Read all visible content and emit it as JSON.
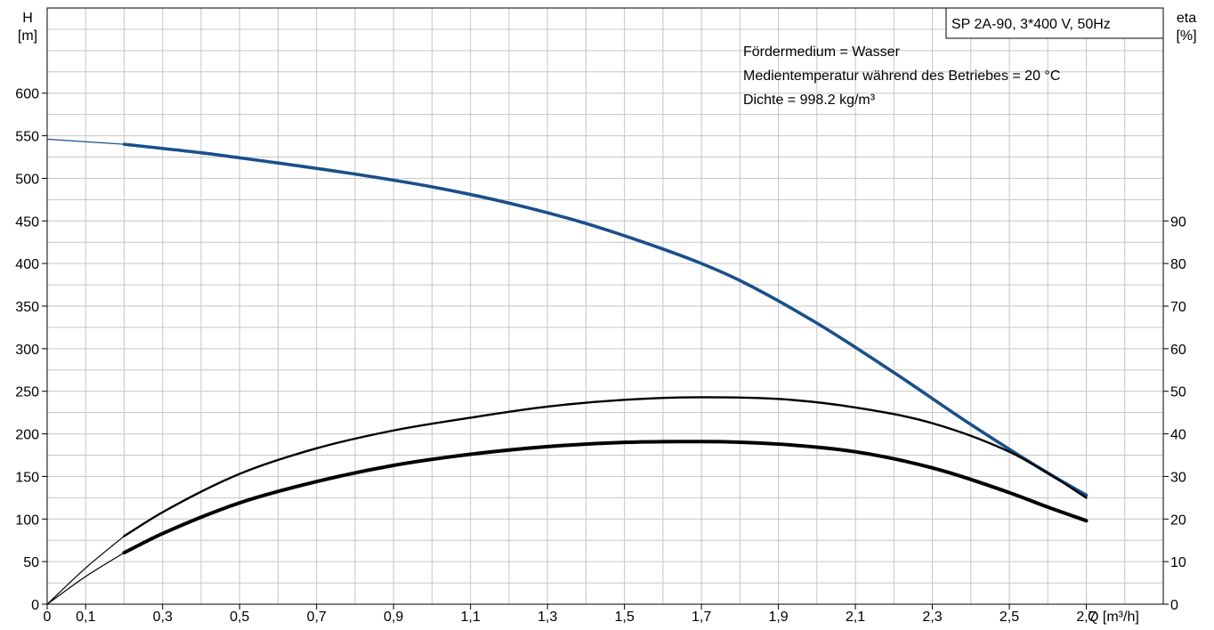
{
  "chart_data": {
    "type": "line",
    "title_box": "SP 2A-90, 3*400 V, 50Hz",
    "notes": [
      "Fördermedium = Wasser",
      "Medientemperatur während des Betriebes = 20 °C",
      "Dichte = 998.2 kg/m³"
    ],
    "x_axis": {
      "label": "Q [m³/h]",
      "range": [
        0,
        2.9
      ],
      "tick_labels": [
        "0",
        "0,1",
        "0,3",
        "0,5",
        "0,7",
        "0,9",
        "1,1",
        "1,3",
        "1,5",
        "1,7",
        "1,9",
        "2,1",
        "2,3",
        "2,5",
        "2,7"
      ],
      "tick_values": [
        0,
        0.1,
        0.3,
        0.5,
        0.7,
        0.9,
        1.1,
        1.3,
        1.5,
        1.7,
        1.9,
        2.1,
        2.3,
        2.5,
        2.7
      ]
    },
    "y_left": {
      "label_top": "H",
      "label_unit": "[m]",
      "range": [
        0,
        700
      ],
      "tick_labels": [
        "0",
        "50",
        "100",
        "150",
        "200",
        "250",
        "300",
        "350",
        "400",
        "450",
        "500",
        "550",
        "600"
      ],
      "tick_values": [
        0,
        50,
        100,
        150,
        200,
        250,
        300,
        350,
        400,
        450,
        500,
        550,
        600
      ]
    },
    "y_right": {
      "label_top": "eta",
      "label_unit": "[%]",
      "range": [
        0,
        140
      ],
      "tick_labels": [
        "0",
        "10",
        "20",
        "30",
        "40",
        "50",
        "60",
        "70",
        "80",
        "90"
      ],
      "tick_values": [
        0,
        10,
        20,
        30,
        40,
        50,
        60,
        70,
        80,
        90
      ]
    },
    "grid": true,
    "series": [
      {
        "axis": "left",
        "color": "#1a4f8a",
        "extended_range": [
          0,
          0.2
        ],
        "x": [
          0,
          0.2,
          0.4,
          0.6,
          0.8,
          1.0,
          1.2,
          1.4,
          1.6,
          1.7,
          1.8,
          2.0,
          2.2,
          2.4,
          2.6,
          2.7
        ],
        "y": [
          546,
          540,
          530,
          518,
          505,
          490,
          471,
          447,
          417,
          400,
          380,
          330,
          272,
          211,
          154,
          128
        ]
      },
      {
        "axis": "right",
        "color": "#000000",
        "extended_range": [
          0,
          0.2
        ],
        "x": [
          0,
          0.1,
          0.2,
          0.3,
          0.5,
          0.7,
          0.9,
          1.1,
          1.3,
          1.5,
          1.7,
          1.9,
          2.1,
          2.3,
          2.5,
          2.6,
          2.7
        ],
        "y": [
          0,
          8.5,
          16,
          21.6,
          30.6,
          36.6,
          40.8,
          43.8,
          46.4,
          48.0,
          48.6,
          48.2,
          46.2,
          42.5,
          35.8,
          30.8,
          25
        ]
      },
      {
        "axis": "right",
        "color": "#000000",
        "thick": true,
        "extended_range": [
          0,
          0.2
        ],
        "x": [
          0,
          0.1,
          0.2,
          0.3,
          0.5,
          0.7,
          0.9,
          1.1,
          1.3,
          1.5,
          1.7,
          1.9,
          2.1,
          2.3,
          2.5,
          2.6,
          2.7
        ],
        "y": [
          0,
          6.5,
          12.1,
          16.6,
          23.8,
          28.8,
          32.6,
          35.2,
          37.0,
          38.0,
          38.2,
          37.6,
          35.8,
          32.0,
          26.2,
          22.8,
          19.6
        ]
      }
    ]
  }
}
